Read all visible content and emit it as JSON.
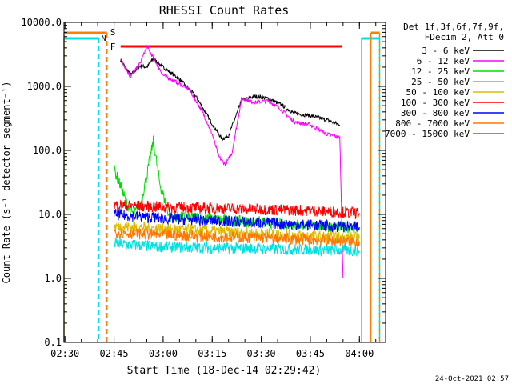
{
  "chart_data": {
    "type": "line",
    "title": "RHESSI Count Rates",
    "xlabel": "Start Time (18-Dec-14 02:29:42)",
    "ylabel": "Count Rate (s⁻¹ detector segment⁻¹)",
    "y_scale": "log",
    "ylim": [
      0.1,
      10000
    ],
    "y_ticks": [
      "0.1",
      "1.0",
      "10.0",
      "100.0",
      "1000.0",
      "10000.0"
    ],
    "x_ticks": [
      "02:30",
      "02:45",
      "03:00",
      "03:15",
      "03:30",
      "03:45",
      "04:00"
    ],
    "xlim": [
      "02:29:42",
      "04:08:00"
    ],
    "legend_header": [
      "Det 1f,3f,6f,7f,9f,",
      "FDecim 2, Att 0"
    ],
    "legend_position": "right",
    "footer_timestamp": "24-Oct-2021 02:57",
    "flag_labels": {
      "saa": "S",
      "night": "N",
      "flare": "F"
    },
    "flag_colors": {
      "saa": "#ff8000",
      "night": "#00e0e0",
      "flare": "#ff0000"
    },
    "flags": {
      "night": [
        [
          "02:29:42",
          "02:40:20"
        ],
        [
          "04:00:40",
          "04:06:10"
        ]
      ],
      "saa": [
        [
          "02:29:42",
          "02:42:50"
        ],
        [
          "04:03:30",
          "04:06:10"
        ]
      ],
      "flare": [
        [
          "02:47:00",
          "03:54:40"
        ]
      ]
    },
    "series": [
      {
        "name": "3 - 6 keV",
        "color": "#000000",
        "x": [
          "02:47",
          "02:50",
          "02:53",
          "02:55",
          "02:57",
          "03:00",
          "03:05",
          "03:10",
          "03:15",
          "03:18",
          "03:20",
          "03:24",
          "03:28",
          "03:32",
          "03:36",
          "03:40",
          "03:45",
          "03:50",
          "03:54"
        ],
        "y": [
          2600,
          1500,
          2100,
          2000,
          2700,
          2000,
          1300,
          700,
          260,
          150,
          170,
          600,
          700,
          650,
          520,
          380,
          350,
          300,
          250
        ]
      },
      {
        "name": "6 - 12 keV",
        "color": "#ff00ff",
        "x": [
          "02:47",
          "02:50",
          "02:53",
          "02:55",
          "02:57",
          "03:00",
          "03:05",
          "03:08",
          "03:12",
          "03:15",
          "03:17",
          "03:19",
          "03:21",
          "03:24",
          "03:28",
          "03:32",
          "03:36",
          "03:40",
          "03:45",
          "03:50",
          "03:54",
          "03:55"
        ],
        "y": [
          2700,
          1400,
          2300,
          4200,
          2800,
          1500,
          1100,
          900,
          400,
          180,
          80,
          60,
          90,
          650,
          560,
          600,
          440,
          280,
          250,
          180,
          160,
          1
        ]
      },
      {
        "name": "12 - 25 keV",
        "color": "#00dd00",
        "x": [
          "02:45",
          "02:47",
          "02:49",
          "02:51",
          "02:53",
          "02:55",
          "02:57",
          "02:59",
          "03:02",
          "03:10",
          "03:20",
          "03:30",
          "03:40",
          "03:50",
          "04:00"
        ],
        "y": [
          50,
          28,
          14,
          10,
          14,
          40,
          140,
          30,
          9,
          9,
          8,
          7.5,
          7,
          6.5,
          6
        ]
      },
      {
        "name": "25 - 50 keV",
        "color": "#00e0e0",
        "x": [
          "02:45",
          "03:00",
          "03:15",
          "03:30",
          "03:45",
          "04:00"
        ],
        "y": [
          3.5,
          3.1,
          3.0,
          2.9,
          2.8,
          2.7
        ]
      },
      {
        "name": "50 - 100 keV",
        "color": "#ddbb00",
        "x": [
          "02:45",
          "03:00",
          "03:15",
          "03:30",
          "03:45",
          "04:00"
        ],
        "y": [
          6.5,
          6.0,
          5.5,
          5.0,
          4.6,
          4.3
        ]
      },
      {
        "name": "100 - 300 keV",
        "color": "#ff0000",
        "x": [
          "02:45",
          "03:00",
          "03:15",
          "03:30",
          "03:45",
          "04:00"
        ],
        "y": [
          14,
          13,
          12.5,
          12,
          11.5,
          10.5
        ]
      },
      {
        "name": "300 - 800 keV",
        "color": "#0000ff",
        "x": [
          "02:45",
          "03:00",
          "03:15",
          "03:30",
          "03:45",
          "04:00"
        ],
        "y": [
          10,
          8.7,
          8.0,
          7.4,
          6.8,
          6.3
        ]
      },
      {
        "name": "800 - 7000 keV",
        "color": "#ff7700",
        "x": [
          "02:45",
          "03:00",
          "03:15",
          "03:30",
          "03:45",
          "04:00"
        ],
        "y": [
          5.2,
          4.8,
          4.5,
          4.3,
          4.0,
          3.7
        ]
      },
      {
        "name": "7000 - 15000 keV",
        "color": "#777700",
        "x": [],
        "y": []
      }
    ]
  }
}
